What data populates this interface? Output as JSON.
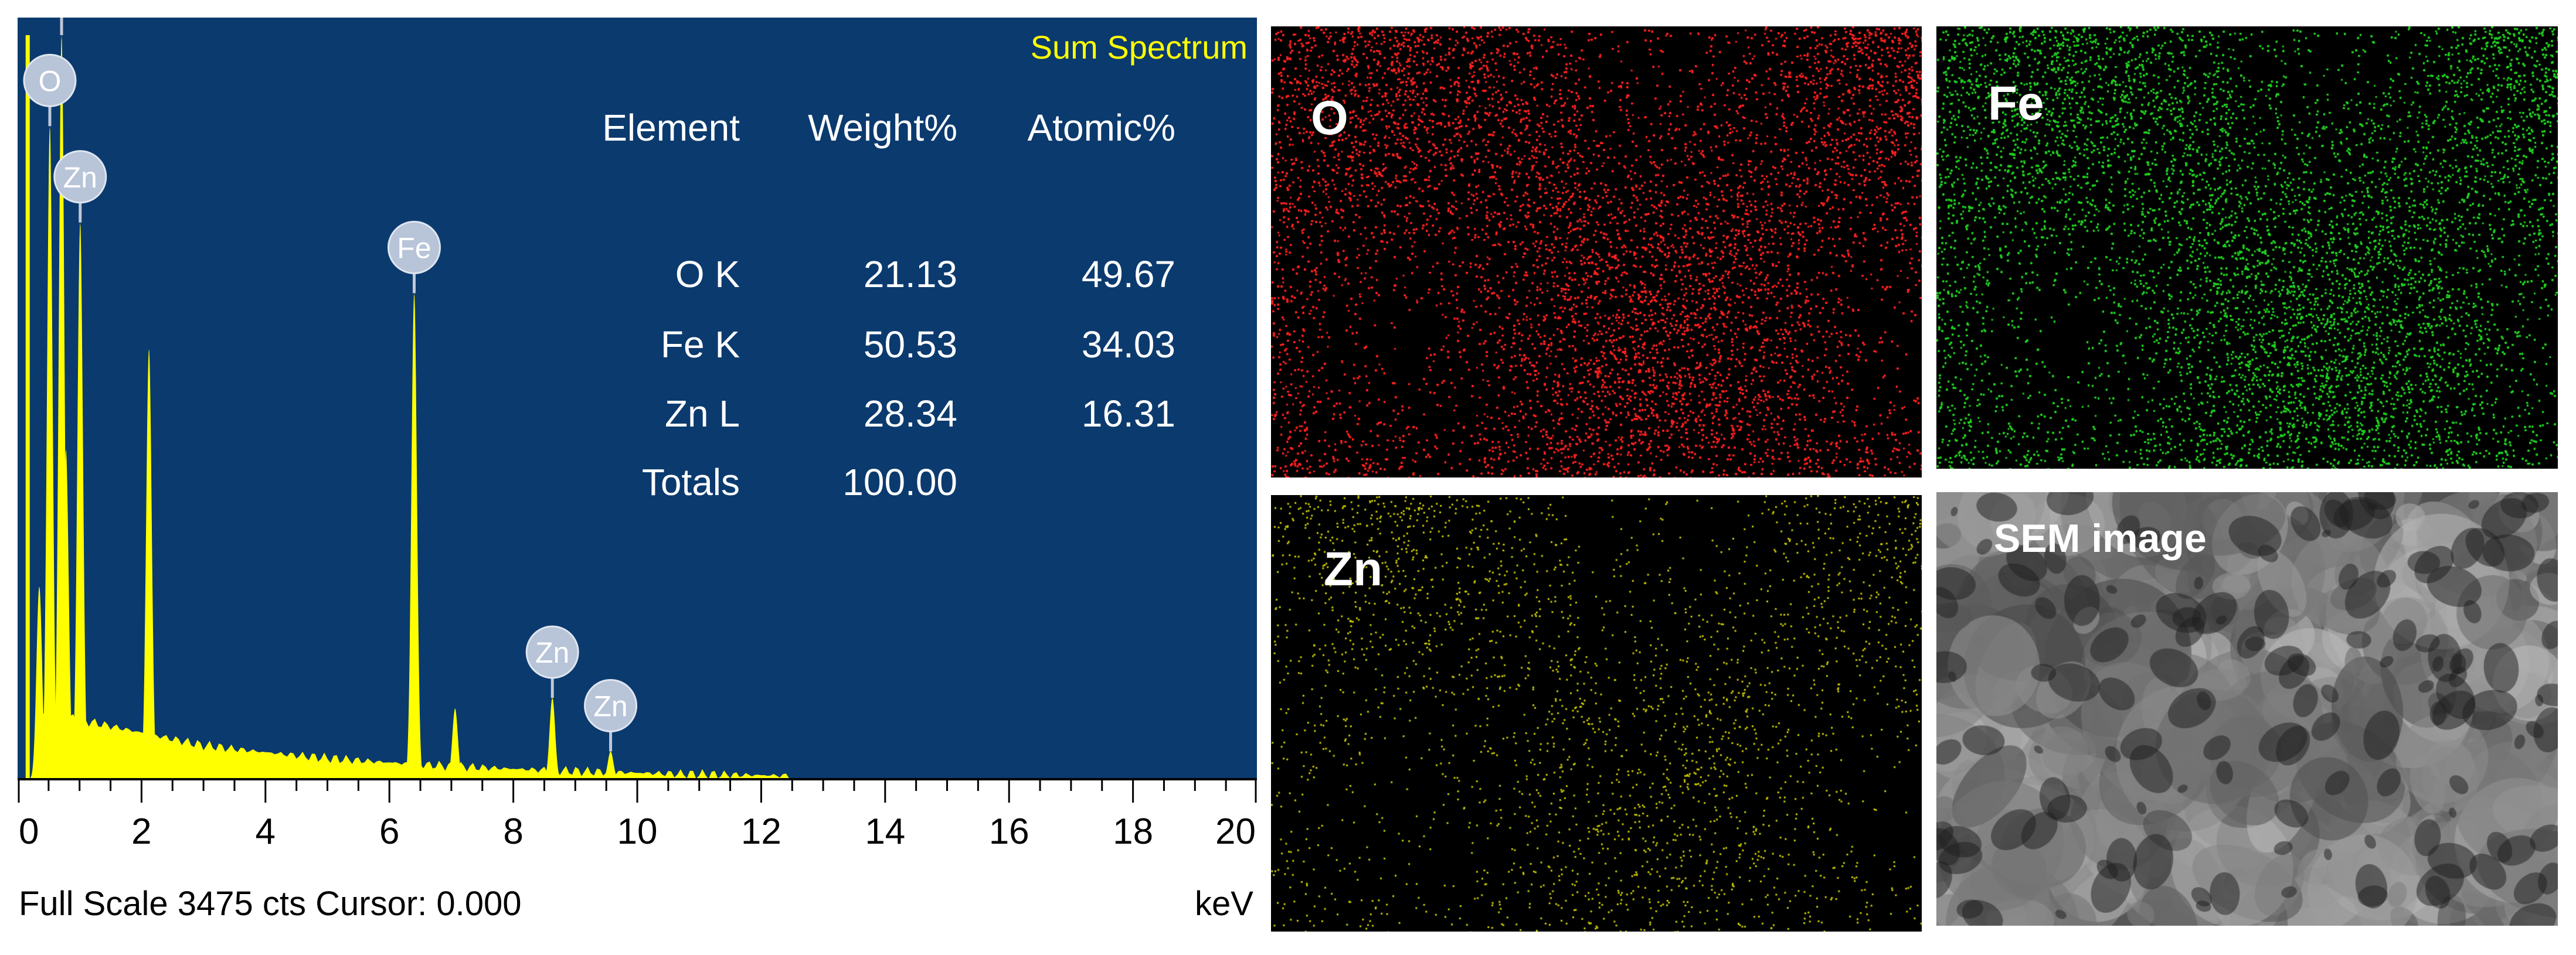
{
  "chart_data": {
    "type": "line",
    "title": "Sum Spectrum",
    "xlabel": "keV",
    "xlim": [
      0,
      20
    ],
    "x_ticks": [
      "0",
      "2",
      "4",
      "6",
      "8",
      "10",
      "12",
      "14",
      "16",
      "18",
      "20"
    ],
    "footer": "Full Scale 3475 cts Cursor: 0.000",
    "full_scale_cts": 3475,
    "fill_color": "#ffff00",
    "background_color": "#0b3a6e",
    "peaks": [
      {
        "label": "Fe",
        "kev": 0.71,
        "intensity": 3475
      },
      {
        "label": "O",
        "kev": 0.52,
        "intensity": 3050
      },
      {
        "label": "Zn",
        "kev": 1.01,
        "intensity": 2600
      },
      {
        "label": "",
        "kev": 0.78,
        "intensity": 1540
      },
      {
        "label": "",
        "kev": 0.35,
        "intensity": 900
      },
      {
        "label": "",
        "kev": 1.6,
        "intensity": 160
      },
      {
        "label": "",
        "kev": 2.12,
        "intensity": 2010
      },
      {
        "label": "Fe",
        "kev": 6.4,
        "intensity": 2270
      },
      {
        "label": "",
        "kev": 7.06,
        "intensity": 330
      },
      {
        "label": "Zn",
        "kev": 8.63,
        "intensity": 380
      },
      {
        "label": "Zn",
        "kev": 9.57,
        "intensity": 130
      }
    ],
    "table": {
      "headers": [
        "Element",
        "Weight%",
        "Atomic%"
      ],
      "rows": [
        [
          "O K",
          "21.13",
          "49.67"
        ],
        [
          "Fe K",
          "50.53",
          "34.03"
        ],
        [
          "Zn L",
          "28.34",
          "16.31"
        ],
        [
          "Totals",
          "100.00",
          ""
        ]
      ]
    }
  },
  "maps": [
    {
      "label": "O",
      "color": "#ff2020"
    },
    {
      "label": "Fe",
      "color": "#20d020"
    },
    {
      "label": "Zn",
      "color": "#c8c800"
    },
    {
      "label": "SEM image",
      "color": "#9a9a9a"
    }
  ]
}
